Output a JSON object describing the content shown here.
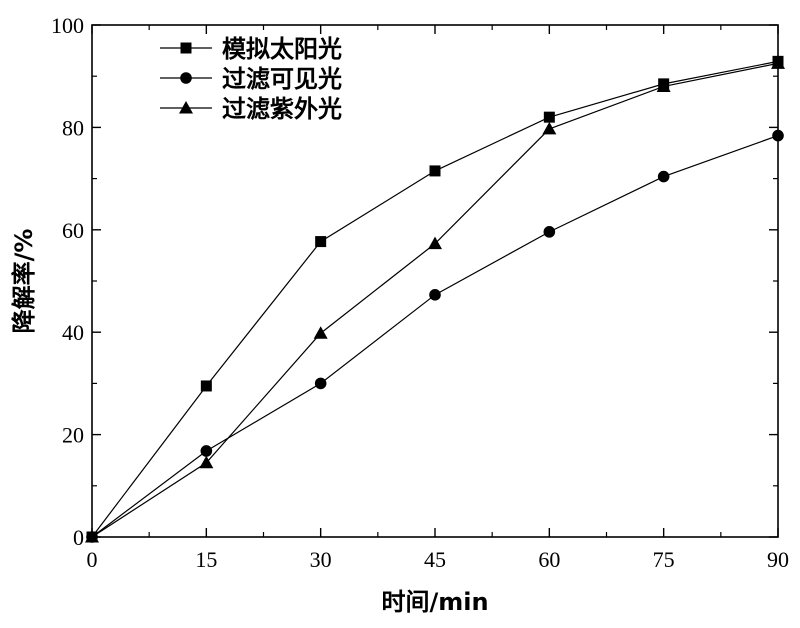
{
  "chart_data": {
    "type": "line",
    "title": "",
    "xlabel": "时间/min",
    "ylabel": "降解率/%",
    "xlim": [
      0,
      90
    ],
    "ylim": [
      0,
      100
    ],
    "xticks": [
      0,
      15,
      30,
      45,
      60,
      75,
      90
    ],
    "yticks": [
      0,
      20,
      40,
      60,
      80,
      100
    ],
    "grid": false,
    "legend_position": "top-left",
    "x": [
      0,
      15,
      30,
      45,
      60,
      75,
      90
    ],
    "series": [
      {
        "name": "模拟太阳光",
        "marker": "square",
        "color": "#000000",
        "values": [
          0,
          29.5,
          57.7,
          71.5,
          82.0,
          88.5,
          92.9
        ]
      },
      {
        "name": "过滤可见光",
        "marker": "circle",
        "color": "#000000",
        "values": [
          0,
          16.8,
          30.0,
          47.3,
          59.6,
          70.4,
          78.4
        ]
      },
      {
        "name": "过滤紫外光",
        "marker": "triangle",
        "color": "#000000",
        "values": [
          0,
          14.5,
          39.8,
          57.3,
          79.7,
          88.0,
          92.5
        ]
      }
    ]
  }
}
